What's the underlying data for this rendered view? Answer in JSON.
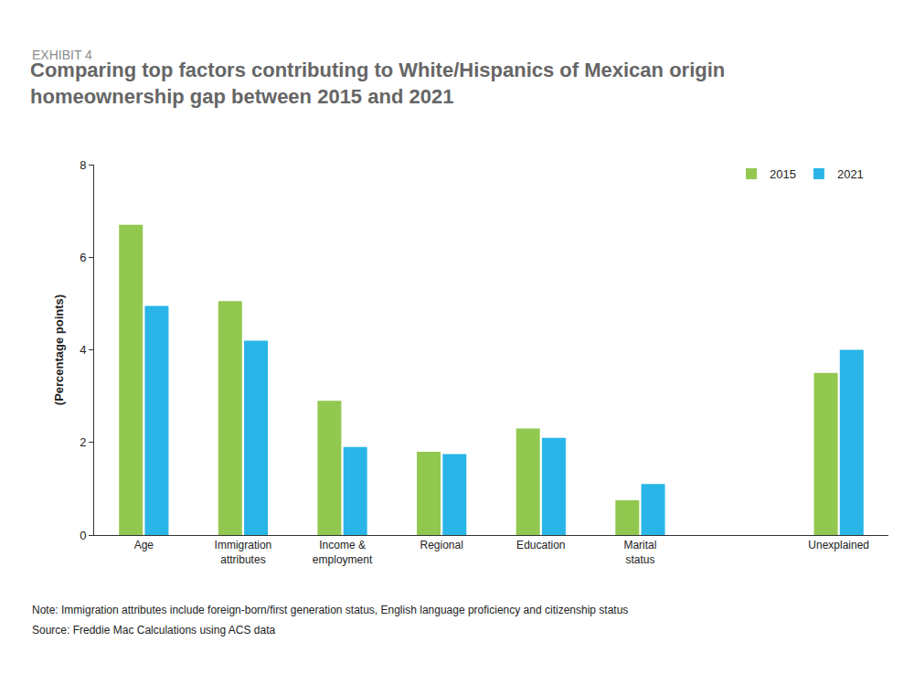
{
  "chart_data": {
    "type": "bar",
    "subtitle": "EXHIBIT 4",
    "title": "Comparing top factors contributing to White/Hispanics of Mexican origin homeownership gap between 2015 and 2021",
    "y_label": "(Percentage points)",
    "categories": [
      "Age",
      "Immigration attributes",
      "Income & employment",
      "Regional",
      "Education",
      "Marital status",
      null,
      "Unexplained"
    ],
    "series": [
      {
        "name": "2015",
        "color": "#92c850",
        "values": [
          6.7,
          5.05,
          2.9,
          1.8,
          2.3,
          0.75,
          null,
          3.5
        ]
      },
      {
        "name": "2021",
        "color": "#29b5e8",
        "values": [
          4.95,
          4.2,
          1.9,
          1.75,
          2.1,
          1.1,
          null,
          4.0
        ]
      }
    ],
    "ylim": [
      0,
      8
    ],
    "yticks": [
      0,
      2,
      4,
      6,
      8
    ],
    "grid": false,
    "legend": "top right",
    "annotations": [
      "Note: Immigration attributes include foreign-born/first generation status, English language proficiency and citizenship status",
      "Source: Freddie Mac Calculations using ACS data"
    ]
  }
}
